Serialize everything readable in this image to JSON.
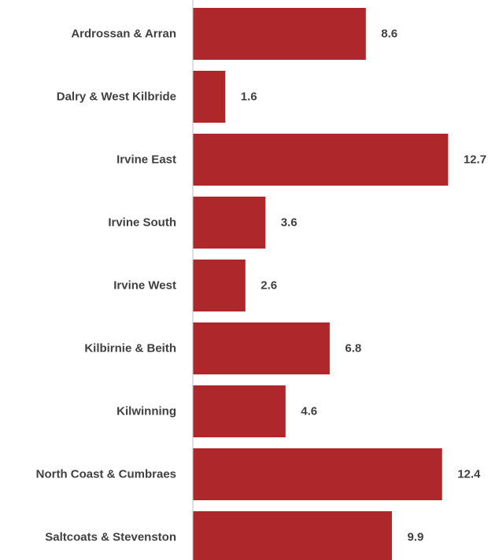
{
  "chart_data": {
    "type": "bar",
    "orientation": "horizontal",
    "categories": [
      "Ardrossan & Arran",
      "Dalry & West Kilbride",
      "Irvine East",
      "Irvine South",
      "Irvine West",
      "Kilbirnie & Beith",
      "Kilwinning",
      "North Coast & Cumbraes",
      "Saltcoats & Stevenston"
    ],
    "values": [
      8.6,
      1.6,
      12.7,
      3.6,
      2.6,
      6.8,
      4.6,
      12.4,
      9.9
    ],
    "data_labels": [
      "8.6",
      "1.6",
      "12.7",
      "3.6",
      "2.6",
      "6.8",
      "4.6",
      "12.4",
      "9.9"
    ],
    "title": "",
    "xlabel": "",
    "ylabel": "",
    "xlim": [
      0,
      14
    ],
    "grid": false,
    "legend": "none",
    "colors": {
      "bar": "#ad272b",
      "axis": "#bfbfbf",
      "text": "#404040"
    }
  }
}
